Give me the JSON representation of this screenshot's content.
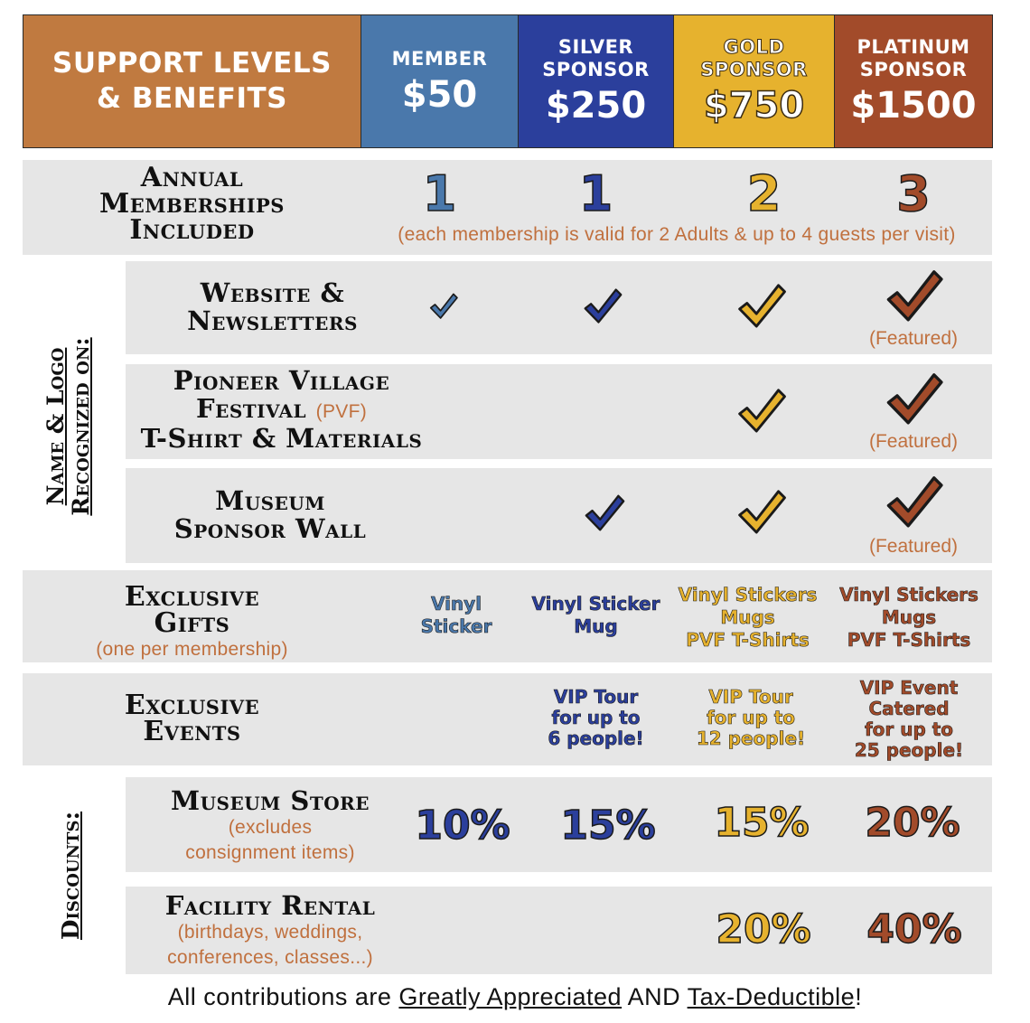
{
  "colors": {
    "orange": "#c07a40",
    "member": "#4a78ab",
    "silver": "#2b3f9c",
    "gold": "#e6b22e",
    "platinum": "#a24b2a",
    "band": "#e6e6e6",
    "accent_text": "#c0703e"
  },
  "header": {
    "title_line1": "SUPPORT LEVELS",
    "title_line2": "& BENEFITS",
    "tiers": [
      {
        "name_line1": "MEMBER",
        "name_line2": "",
        "price": "$50"
      },
      {
        "name_line1": "SILVER",
        "name_line2": "SPONSOR",
        "price": "$250"
      },
      {
        "name_line1": "GOLD",
        "name_line2": "SPONSOR",
        "price": "$750"
      },
      {
        "name_line1": "PLATINUM",
        "name_line2": "SPONSOR",
        "price": "$1500"
      }
    ]
  },
  "memberships": {
    "label_line1": "Annual",
    "label_line2": "Memberships",
    "label_line3": "Included",
    "values": [
      "1",
      "1",
      "2",
      "3"
    ],
    "note": "(each membership is valid for 2 Adults & up to 4 guests per visit)"
  },
  "recognition": {
    "section_label_line1": "Name & Logo",
    "section_label_line2": "Recognized on:",
    "featured_text": "(Featured)",
    "rows": [
      {
        "label_line1": "Website &",
        "label_line2": "Newsletters",
        "checks": [
          true,
          true,
          true,
          true
        ]
      },
      {
        "label_line1": "Pioneer Village",
        "label_line2": "Festival",
        "label_paren": "(PVF)",
        "label_line3": "T-Shirt & Materials",
        "checks": [
          false,
          false,
          true,
          true
        ]
      },
      {
        "label_line1": "Museum",
        "label_line2": "Sponsor Wall",
        "checks": [
          false,
          true,
          true,
          true
        ]
      }
    ]
  },
  "gifts": {
    "label_line1": "Exclusive",
    "label_line2": "Gifts",
    "note": "(one per membership)",
    "tiers": [
      [
        "Vinyl",
        "Sticker"
      ],
      [
        "Vinyl Sticker",
        "Mug"
      ],
      [
        "Vinyl Stickers",
        "Mugs",
        "PVF T-Shirts"
      ],
      [
        "Vinyl Stickers",
        "Mugs",
        "PVF T-Shirts"
      ]
    ]
  },
  "events": {
    "label_line1": "Exclusive",
    "label_line2": "Events",
    "tiers": [
      [],
      [
        "VIP Tour",
        "for up to",
        "6 people!"
      ],
      [
        "VIP Tour",
        "for up to",
        "12 people!"
      ],
      [
        "VIP Event",
        "Catered",
        "for up to",
        "25 people!"
      ]
    ]
  },
  "discounts": {
    "section_label": "Discounts:",
    "store": {
      "label": "Museum Store",
      "note_line1": "(excludes",
      "note_line2": "consignment items)",
      "values": [
        "10%",
        "15%",
        "15%",
        "20%"
      ]
    },
    "rental": {
      "label": "Facility Rental",
      "note_line1": "(birthdays, weddings,",
      "note_line2": "conferences, classes...)",
      "values": [
        "",
        "",
        "20%",
        "40%"
      ]
    }
  },
  "footer": {
    "part1": "All contributions are ",
    "link1": "Greatly Appreciated",
    "part2": " AND ",
    "link2": "Tax-Deductible",
    "part3": "!"
  }
}
